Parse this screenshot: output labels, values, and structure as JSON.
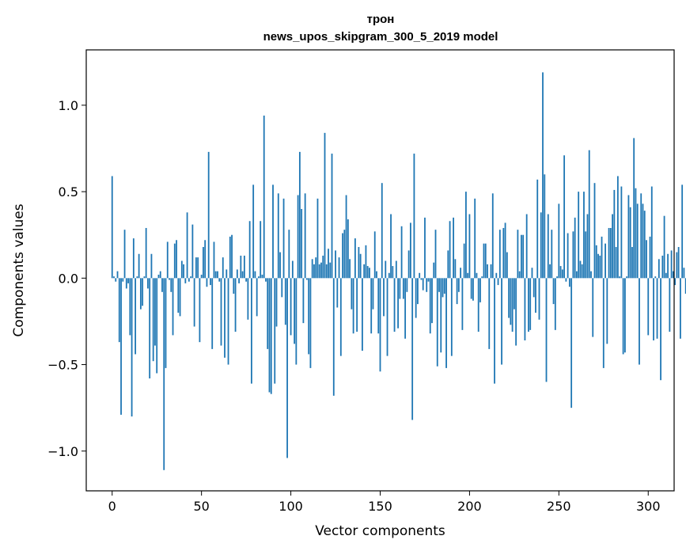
{
  "chart_data": {
    "type": "bar",
    "title_line1": "трон",
    "title_line2": "news_upos_skipgram_300_5_2019 model",
    "xlabel": "Vector components",
    "ylabel": "Components values",
    "xlim": [
      -14.5,
      314.5
    ],
    "ylim": [
      -1.23,
      1.32
    ],
    "xticks": [
      0,
      50,
      100,
      150,
      200,
      250,
      300
    ],
    "yticks": [
      -1.0,
      -0.5,
      0.0,
      0.5,
      1.0
    ],
    "ytick_labels": [
      "−1.0",
      "−0.5",
      "0.0",
      "0.5",
      "1.0"
    ],
    "bar_color": "#1f77b4",
    "grid": false,
    "values": [
      0.59,
      0.01,
      -0.02,
      0.04,
      -0.37,
      -0.79,
      -0.02,
      0.28,
      -0.06,
      -0.03,
      -0.33,
      -0.8,
      0.23,
      -0.44,
      0.01,
      0.14,
      -0.18,
      -0.16,
      0.01,
      0.29,
      -0.06,
      -0.58,
      0.14,
      -0.48,
      -0.39,
      -0.55,
      0.02,
      0.04,
      -0.08,
      -1.11,
      -0.52,
      0.21,
      -0.01,
      -0.08,
      -0.33,
      0.2,
      0.22,
      -0.2,
      -0.22,
      0.1,
      0.08,
      -0.03,
      0.38,
      -0.02,
      0.01,
      0.31,
      -0.28,
      0.12,
      0.12,
      -0.37,
      0.02,
      0.18,
      0.22,
      -0.05,
      0.73,
      -0.04,
      -0.41,
      0.21,
      0.04,
      0.04,
      -0.02,
      -0.39,
      0.12,
      -0.46,
      0.05,
      -0.5,
      0.24,
      0.25,
      -0.09,
      -0.31,
      0.05,
      -0.03,
      0.13,
      0.04,
      0.13,
      -0.02,
      -0.24,
      0.33,
      -0.61,
      0.54,
      0.04,
      -0.22,
      0.01,
      0.33,
      0.02,
      0.94,
      -0.02,
      -0.41,
      -0.66,
      -0.67,
      0.54,
      -0.61,
      -0.28,
      0.49,
      0.15,
      -0.11,
      0.46,
      -0.27,
      -1.04,
      0.28,
      -0.33,
      0.1,
      -0.38,
      -0.5,
      0.48,
      0.73,
      0.4,
      -0.26,
      0.49,
      -0.01,
      -0.44,
      -0.52,
      0.11,
      0.08,
      0.12,
      0.46,
      0.08,
      0.09,
      0.13,
      0.84,
      0.08,
      0.17,
      0.09,
      0.72,
      -0.68,
      0.16,
      -0.17,
      0.12,
      -0.45,
      0.26,
      0.28,
      0.48,
      0.34,
      0.11,
      -0.18,
      -0.32,
      0.23,
      -0.31,
      0.18,
      0.14,
      -0.42,
      0.08,
      0.19,
      0.07,
      0.06,
      -0.32,
      -0.18,
      0.27,
      0.04,
      -0.32,
      -0.54,
      0.55,
      -0.22,
      0.1,
      -0.45,
      0.03,
      0.37,
      0.07,
      -0.31,
      0.1,
      -0.29,
      -0.12,
      0.3,
      -0.12,
      -0.35,
      -0.08,
      0.16,
      0.32,
      -0.82,
      0.72,
      -0.23,
      -0.15,
      0.03,
      -0.01,
      -0.07,
      0.35,
      -0.08,
      -0.02,
      -0.32,
      -0.26,
      0.09,
      0.28,
      -0.51,
      -0.08,
      -0.43,
      -0.11,
      -0.09,
      -0.52,
      0.16,
      0.33,
      -0.45,
      0.35,
      0.11,
      -0.15,
      -0.08,
      0.06,
      -0.3,
      0.2,
      0.5,
      0.03,
      0.37,
      -0.12,
      -0.13,
      0.46,
      0.03,
      -0.31,
      -0.14,
      0.01,
      0.2,
      0.2,
      0.08,
      -0.41,
      0.08,
      0.49,
      -0.61,
      0.03,
      -0.04,
      0.28,
      -0.5,
      0.29,
      0.32,
      0.15,
      -0.23,
      -0.27,
      -0.31,
      -0.18,
      -0.39,
      0.28,
      0.04,
      0.25,
      0.25,
      -0.36,
      0.37,
      -0.31,
      -0.3,
      0.06,
      -0.11,
      -0.2,
      0.57,
      -0.24,
      0.38,
      1.19,
      0.6,
      -0.6,
      0.37,
      0.08,
      0.28,
      -0.15,
      -0.3,
      0.01,
      0.43,
      0.07,
      0.05,
      0.71,
      -0.02,
      0.26,
      -0.05,
      -0.75,
      0.27,
      0.35,
      0.04,
      0.5,
      0.1,
      0.08,
      0.5,
      0.27,
      0.37,
      0.74,
      0.04,
      -0.34,
      0.55,
      0.19,
      0.14,
      0.13,
      0.24,
      -0.52,
      0.2,
      -0.38,
      0.29,
      0.29,
      0.37,
      0.51,
      0.18,
      0.59,
      0.01,
      0.53,
      -0.44,
      -0.43,
      0.01,
      0.48,
      0.41,
      0.18,
      0.81,
      0.52,
      0.43,
      -0.5,
      0.49,
      0.43,
      0.39,
      0.22,
      -0.33,
      0.24,
      0.53,
      -0.36,
      0.01,
      -0.35,
      0.11,
      -0.59,
      0.13,
      0.36,
      0.03,
      0.14,
      -0.31,
      0.16,
      0.04,
      -0.04,
      0.15,
      0.18,
      -0.35,
      0.54,
      0.06,
      -0.09
    ]
  }
}
